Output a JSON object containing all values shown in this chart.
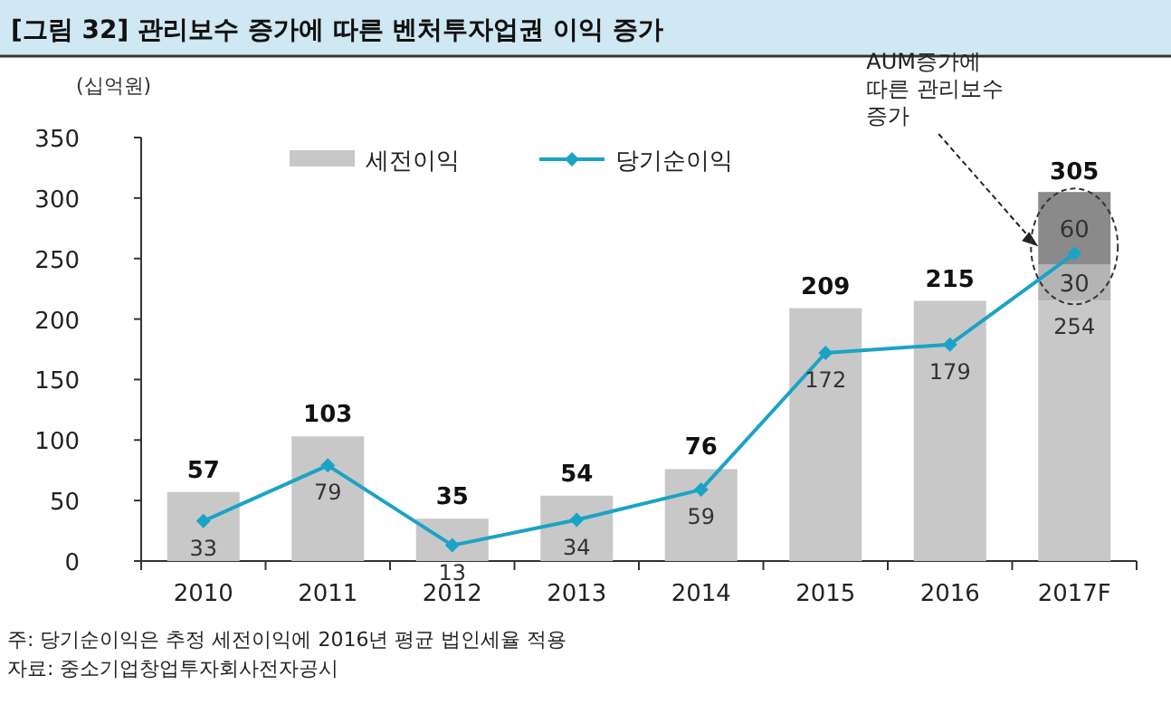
{
  "chart_data": {
    "type": "bar",
    "stacked": true,
    "title": "[그림 32] 관리보수 증가에 따른 벤처투자업권 이익 증가",
    "ylabel": "(십억원)",
    "categories": [
      "2010",
      "2011",
      "2012",
      "2013",
      "2014",
      "2015",
      "2016",
      "2017F"
    ],
    "ylim": [
      0,
      350
    ],
    "yticks": [
      0,
      50,
      100,
      150,
      200,
      250,
      300,
      350
    ],
    "legend": "top",
    "grid": false,
    "series": [
      {
        "name": "세전이익",
        "color": "#c8c8c8",
        "values": [
          57,
          103,
          35,
          54,
          76,
          209,
          215,
          215
        ],
        "value_labels": [
          "57",
          "103",
          "35",
          "54",
          "76",
          "209",
          "215",
          null
        ]
      },
      {
        "color": "#b4b4b4",
        "values": [
          null,
          null,
          null,
          null,
          null,
          null,
          null,
          30
        ],
        "value_labels": [
          null,
          null,
          null,
          null,
          null,
          null,
          null,
          "30"
        ]
      },
      {
        "color": "#8a8a8a",
        "values": [
          null,
          null,
          null,
          null,
          null,
          null,
          null,
          60
        ],
        "value_labels": [
          null,
          null,
          null,
          null,
          null,
          null,
          null,
          "60"
        ]
      },
      {
        "name": "당기순이익",
        "type": "line",
        "color": "#1ba3c6",
        "marker": "diamond",
        "values": [
          33,
          79,
          13,
          34,
          59,
          172,
          179,
          254
        ],
        "value_labels": [
          "33",
          "79",
          "13",
          "34",
          "59",
          "172",
          "179",
          "254"
        ]
      }
    ],
    "totals": [
      null,
      null,
      null,
      null,
      null,
      null,
      null,
      "305"
    ],
    "annotations": [
      "AUM증가에\n따른 관리보수\n증가",
      "주: 당기순이익은 추정 세전이익에 2016년 평균 법인세율 적용",
      "자료: 중소기업창업투자회사전자공시"
    ]
  }
}
